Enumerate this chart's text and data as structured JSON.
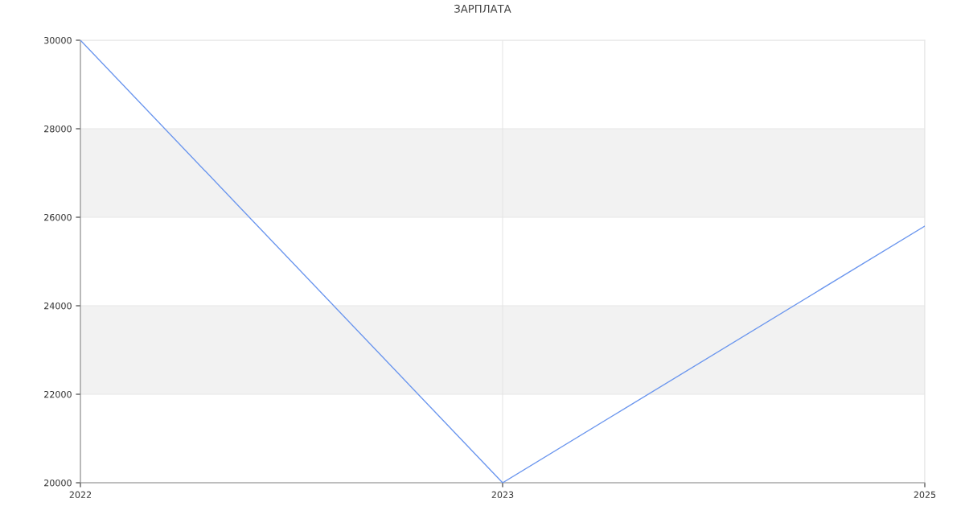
{
  "chart_data": {
    "type": "line",
    "title": "ЗАРПЛАТА",
    "categories": [
      "2022",
      "2023",
      "2025"
    ],
    "series": [
      {
        "color": "#6b96ee",
        "values": [
          30000,
          20000,
          25800
        ]
      }
    ],
    "ylim": [
      20000,
      30000
    ],
    "yticks": [
      20000,
      22000,
      24000,
      26000,
      28000,
      30000
    ],
    "grid": true,
    "marker": "none",
    "line_style": "solid"
  }
}
